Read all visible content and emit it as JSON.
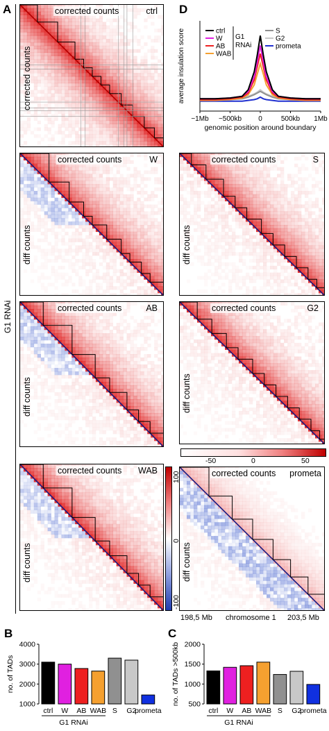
{
  "panels": {
    "A": "A",
    "B": "B",
    "C": "C",
    "D": "D"
  },
  "side_label": "G1 RNAi",
  "heatmap_labels": {
    "upper": "corrected counts",
    "lower_ctrl": "corrected counts",
    "lower_diff": "diff counts"
  },
  "heatmaps": [
    {
      "condition": "ctrl"
    },
    {
      "condition": "W"
    },
    {
      "condition": "AB"
    },
    {
      "condition": "WAB"
    },
    {
      "condition": "S"
    },
    {
      "condition": "G2"
    },
    {
      "condition": "prometa"
    }
  ],
  "colorbar_horizontal": {
    "ticks": [
      "-50",
      "0",
      "50"
    ],
    "colors": {
      "low": "#ffffff",
      "high": "#c00000"
    }
  },
  "colorbar_vertical": {
    "ticks": [
      "100",
      "0",
      "-100"
    ],
    "colors": {
      "top": "#c00000",
      "mid": "#ffffff",
      "bottom": "#1f3cb0"
    }
  },
  "chromosome_axis": {
    "left": "198,5 Mb",
    "center": "chromosome 1",
    "right": "203,5 Mb"
  },
  "chart_data": [
    {
      "type": "line",
      "panel": "D",
      "ylabel": "average insulation score",
      "xlabel": "genomic position around boundary",
      "x_ticks": [
        "−1Mb",
        "−500kb",
        "0",
        "500kb",
        "1Mb"
      ],
      "x": [
        -1000,
        -750,
        -500,
        -300,
        -200,
        -100,
        -50,
        0,
        50,
        100,
        200,
        300,
        500,
        750,
        1000
      ],
      "series": [
        {
          "name": "ctrl",
          "color": "#000000",
          "values": [
            0.05,
            0.05,
            0.06,
            0.08,
            0.16,
            0.38,
            0.58,
            0.82,
            0.58,
            0.38,
            0.16,
            0.08,
            0.06,
            0.05,
            0.05
          ]
        },
        {
          "name": "W",
          "color": "#e020e0",
          "values": [
            0.05,
            0.05,
            0.06,
            0.08,
            0.14,
            0.32,
            0.5,
            0.7,
            0.5,
            0.32,
            0.14,
            0.08,
            0.06,
            0.05,
            0.05
          ]
        },
        {
          "name": "AB",
          "color": "#ee2020",
          "values": [
            0.04,
            0.04,
            0.05,
            0.07,
            0.12,
            0.28,
            0.44,
            0.6,
            0.44,
            0.28,
            0.12,
            0.07,
            0.05,
            0.04,
            0.04
          ]
        },
        {
          "name": "WAB",
          "color": "#f5a030",
          "values": [
            0.03,
            0.03,
            0.04,
            0.06,
            0.1,
            0.22,
            0.35,
            0.48,
            0.35,
            0.22,
            0.1,
            0.06,
            0.04,
            0.03,
            0.03
          ]
        },
        {
          "name": "S",
          "color": "#909090",
          "values": [
            0.04,
            0.04,
            0.04,
            0.05,
            0.07,
            0.1,
            0.12,
            0.14,
            0.12,
            0.1,
            0.07,
            0.05,
            0.04,
            0.04,
            0.04
          ]
        },
        {
          "name": "G2",
          "color": "#c8c8c8",
          "values": [
            0.05,
            0.05,
            0.05,
            0.06,
            0.08,
            0.11,
            0.13,
            0.16,
            0.13,
            0.11,
            0.08,
            0.06,
            0.05,
            0.05,
            0.05
          ]
        },
        {
          "name": "prometa",
          "color": "#2030d0",
          "values": [
            0.02,
            0.02,
            0.02,
            0.02,
            0.03,
            0.04,
            0.05,
            0.07,
            0.05,
            0.04,
            0.03,
            0.02,
            0.02,
            0.02,
            0.02
          ]
        }
      ],
      "legend_group": "G1",
      "legend_group2": "RNAi",
      "ylim": [
        -0.1,
        1.0
      ]
    },
    {
      "type": "bar",
      "panel": "B",
      "ylabel": "no. of TADs",
      "categories": [
        "ctrl",
        "W",
        "AB",
        "WAB",
        "S",
        "G2",
        "prometa"
      ],
      "values": [
        3100,
        3000,
        2780,
        2650,
        3300,
        3200,
        1450
      ],
      "colors": [
        "#000000",
        "#e020e0",
        "#ee2020",
        "#f5a030",
        "#909090",
        "#c8c8c8",
        "#1030e0"
      ],
      "y_ticks": [
        "4000",
        "3000",
        "2000",
        "1000"
      ],
      "ylim": [
        1000,
        4000
      ],
      "group_label": "G1 RNAi"
    },
    {
      "type": "bar",
      "panel": "C",
      "ylabel": "no. of TADs >500kb",
      "categories": [
        "ctrl",
        "W",
        "AB",
        "WAB",
        "S",
        "G2",
        "prometa"
      ],
      "values": [
        1330,
        1420,
        1460,
        1550,
        1240,
        1320,
        990
      ],
      "colors": [
        "#000000",
        "#e020e0",
        "#ee2020",
        "#f5a030",
        "#909090",
        "#c8c8c8",
        "#1030e0"
      ],
      "y_ticks": [
        "2000",
        "1500",
        "1000",
        "500"
      ],
      "ylim": [
        500,
        2000
      ],
      "group_label": "G1 RNAi"
    }
  ]
}
